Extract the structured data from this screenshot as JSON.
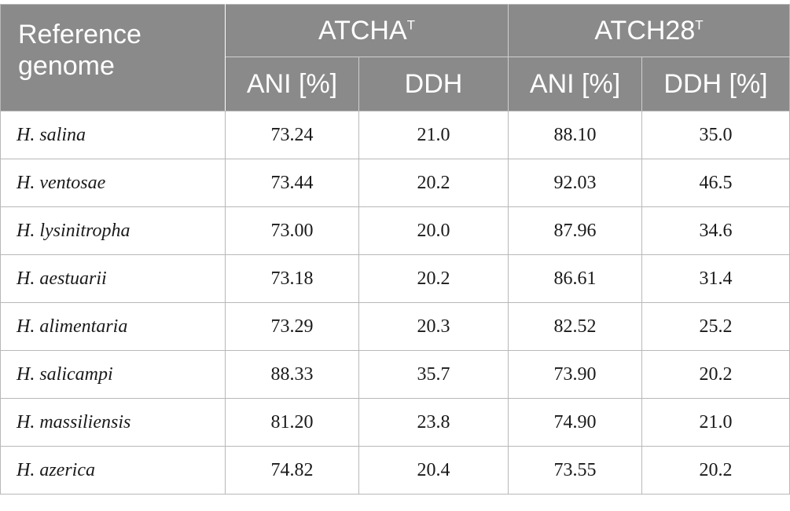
{
  "table": {
    "header": {
      "reference_line1": "Reference",
      "reference_line2": "genome",
      "group1": "ATCHA",
      "group1_sup": "T",
      "group2": "ATCH28",
      "group2_sup": "T",
      "group1_cols": [
        "ANI [%]",
        "DDH"
      ],
      "group2_cols": [
        "ANI [%]",
        "DDH [%]"
      ]
    },
    "rows": [
      {
        "species": "H. salina",
        "ani1": "73.24",
        "ddh1": "21.0",
        "ani2": "88.10",
        "ddh2": "35.0"
      },
      {
        "species": "H. ventosae",
        "ani1": "73.44",
        "ddh1": "20.2",
        "ani2": "92.03",
        "ddh2": "46.5"
      },
      {
        "species": "H. lysinitropha",
        "ani1": "73.00",
        "ddh1": "20.0",
        "ani2": "87.96",
        "ddh2": "34.6"
      },
      {
        "species": "H. aestuarii",
        "ani1": "73.18",
        "ddh1": "20.2",
        "ani2": "86.61",
        "ddh2": "31.4"
      },
      {
        "species": "H. alimentaria",
        "ani1": "73.29",
        "ddh1": "20.3",
        "ani2": "82.52",
        "ddh2": "25.2"
      },
      {
        "species": "H. salicampi",
        "ani1": "88.33",
        "ddh1": "35.7",
        "ani2": "73.90",
        "ddh2": "20.2"
      },
      {
        "species": "H. massiliensis",
        "ani1": "81.20",
        "ddh1": "23.8",
        "ani2": "74.90",
        "ddh2": "21.0"
      },
      {
        "species": "H. azerica",
        "ani1": "74.82",
        "ddh1": "20.4",
        "ani2": "73.55",
        "ddh2": "20.2"
      }
    ]
  }
}
